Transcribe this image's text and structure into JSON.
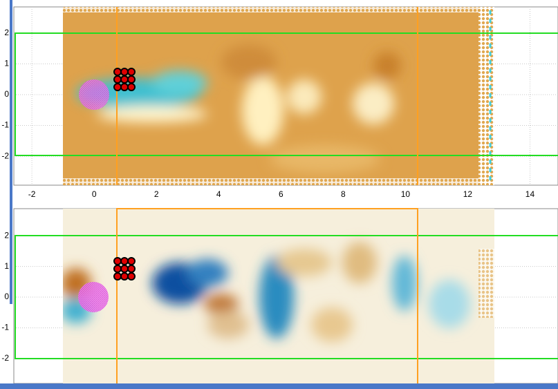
{
  "chart_data": [
    {
      "type": "field",
      "xlim": [
        -2.58,
        14.9
      ],
      "ylim": [
        -2.94,
        2.85
      ],
      "xticks": [
        -2,
        0,
        2,
        4,
        6,
        8,
        10,
        12,
        14
      ],
      "yticks": [
        -2,
        -1,
        0,
        1,
        2
      ],
      "grid": true
    },
    {
      "type": "field",
      "xlim": [
        -2.58,
        14.9
      ],
      "ylim": [
        -2.81,
        2.88
      ],
      "yticks": [
        -2,
        -1,
        0,
        1,
        2
      ],
      "grid": true
    }
  ]
}
